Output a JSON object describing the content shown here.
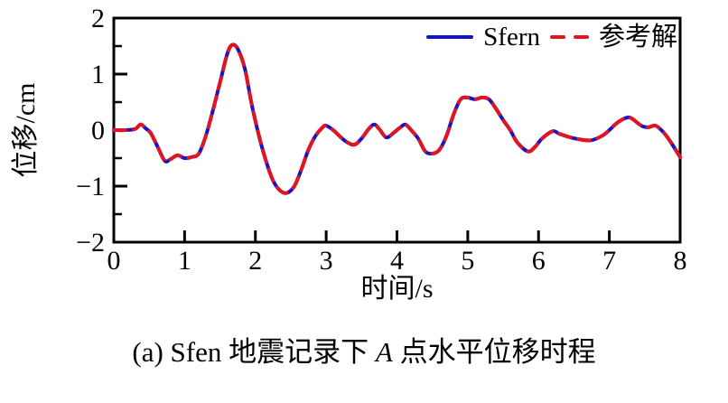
{
  "chart_data": {
    "type": "line",
    "title": "",
    "xlabel": "时间/s",
    "ylabel": "位移/cm",
    "xlim": [
      0,
      8
    ],
    "ylim": [
      -2,
      2
    ],
    "x_ticks": [
      0,
      1,
      2,
      3,
      4,
      5,
      6,
      7,
      8
    ],
    "y_ticks": [
      -2,
      -1,
      0,
      1,
      2
    ],
    "y_minor_tick_step": 0.5,
    "grid": false,
    "legend_position": "top-right-inside",
    "x": [
      0,
      0.15,
      0.3,
      0.38,
      0.45,
      0.52,
      0.62,
      0.72,
      0.8,
      0.9,
      1.0,
      1.1,
      1.2,
      1.3,
      1.4,
      1.5,
      1.6,
      1.67,
      1.75,
      1.85,
      1.95,
      2.05,
      2.15,
      2.25,
      2.35,
      2.45,
      2.55,
      2.65,
      2.75,
      2.85,
      2.95,
      3.0,
      3.1,
      3.2,
      3.3,
      3.4,
      3.5,
      3.6,
      3.68,
      3.75,
      3.85,
      3.95,
      4.05,
      4.12,
      4.2,
      4.3,
      4.4,
      4.5,
      4.6,
      4.7,
      4.8,
      4.9,
      5.0,
      5.1,
      5.2,
      5.3,
      5.4,
      5.5,
      5.6,
      5.7,
      5.85,
      5.95,
      6.05,
      6.2,
      6.3,
      6.45,
      6.6,
      6.75,
      6.9,
      7.0,
      7.1,
      7.2,
      7.3,
      7.45,
      7.55,
      7.65,
      7.75,
      7.85,
      8.0
    ],
    "series": [
      {
        "name": "Sfern",
        "color": "#1414cc",
        "style": "solid",
        "values": [
          0,
          0,
          0.02,
          0.1,
          0.03,
          -0.05,
          -0.3,
          -0.55,
          -0.52,
          -0.45,
          -0.5,
          -0.48,
          -0.42,
          -0.1,
          0.35,
          0.85,
          1.35,
          1.52,
          1.45,
          1.1,
          0.45,
          -0.1,
          -0.55,
          -0.9,
          -1.08,
          -1.12,
          -1.0,
          -0.7,
          -0.35,
          -0.1,
          0.05,
          0.08,
          0.0,
          -0.12,
          -0.22,
          -0.26,
          -0.15,
          0.02,
          0.1,
          0.02,
          -0.13,
          -0.05,
          0.05,
          0.1,
          0.0,
          -0.15,
          -0.38,
          -0.42,
          -0.35,
          -0.1,
          0.28,
          0.55,
          0.58,
          0.55,
          0.58,
          0.55,
          0.38,
          0.18,
          0.0,
          -0.22,
          -0.38,
          -0.3,
          -0.15,
          -0.02,
          -0.07,
          -0.13,
          -0.17,
          -0.18,
          -0.1,
          0.0,
          0.12,
          0.2,
          0.22,
          0.08,
          0.05,
          0.08,
          -0.02,
          -0.18,
          -0.48
        ]
      },
      {
        "name": "参考解",
        "color": "#e11422",
        "style": "dashed",
        "values": [
          0,
          0,
          0.02,
          0.1,
          0.03,
          -0.05,
          -0.3,
          -0.55,
          -0.52,
          -0.45,
          -0.5,
          -0.48,
          -0.42,
          -0.1,
          0.35,
          0.85,
          1.35,
          1.52,
          1.45,
          1.1,
          0.45,
          -0.1,
          -0.55,
          -0.9,
          -1.08,
          -1.12,
          -1.0,
          -0.7,
          -0.35,
          -0.1,
          0.05,
          0.08,
          0.0,
          -0.12,
          -0.22,
          -0.26,
          -0.15,
          0.02,
          0.1,
          0.02,
          -0.13,
          -0.05,
          0.05,
          0.1,
          0.0,
          -0.15,
          -0.38,
          -0.42,
          -0.35,
          -0.1,
          0.28,
          0.55,
          0.58,
          0.55,
          0.58,
          0.55,
          0.38,
          0.18,
          0.0,
          -0.22,
          -0.38,
          -0.3,
          -0.15,
          -0.02,
          -0.07,
          -0.13,
          -0.17,
          -0.18,
          -0.1,
          0.0,
          0.12,
          0.2,
          0.22,
          0.08,
          0.05,
          0.08,
          -0.02,
          -0.18,
          -0.48
        ]
      }
    ],
    "axis_color": "#000000"
  },
  "caption": {
    "prefix": "(a) Sfen 地震记录下 ",
    "italic_part": "A",
    "suffix": " 点水平位移时程"
  }
}
